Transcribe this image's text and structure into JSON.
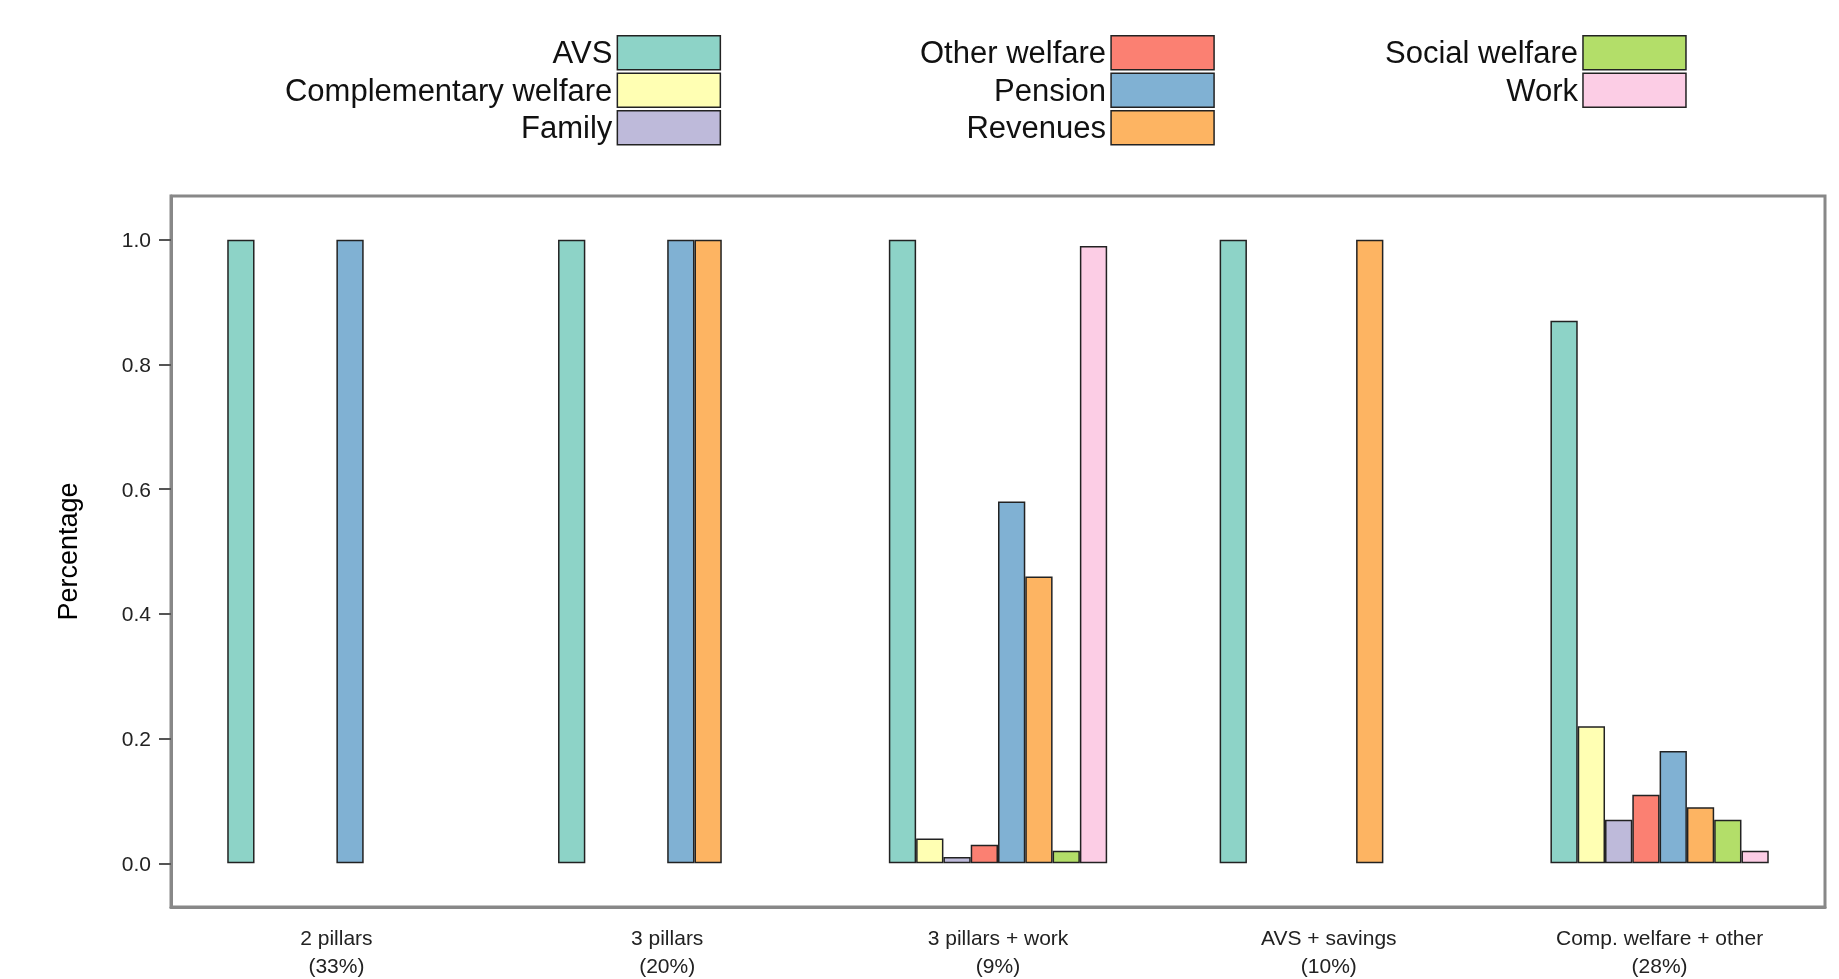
{
  "chart_data": {
    "type": "bar",
    "ylabel": "Percentage",
    "categories": [
      "2 pillars\n(33%)",
      "3 pillars\n(20%)",
      "3 pillars + work\n(9%)",
      "AVS + savings\n(10%)",
      "Comp. welfare + other\n(28%)"
    ],
    "series": [
      {
        "name": "AVS",
        "color": "#8dd3c7",
        "values": [
          1,
          1,
          1,
          1,
          0.87
        ]
      },
      {
        "name": "Complementary welfare",
        "color": "#ffffb3",
        "values": [
          0,
          0,
          0.04,
          0,
          0.22
        ]
      },
      {
        "name": "Family",
        "color": "#bebada",
        "values": [
          0,
          0,
          0.01,
          0,
          0.07
        ]
      },
      {
        "name": "Other welfare",
        "color": "#fb8072",
        "values": [
          0,
          0,
          0.03,
          0,
          0.11
        ]
      },
      {
        "name": "Pension",
        "color": "#80b1d3",
        "values": [
          1,
          1,
          0.58,
          0,
          0.18
        ]
      },
      {
        "name": "Revenues",
        "color": "#fdb462",
        "values": [
          0,
          1,
          0.46,
          1,
          0.09
        ]
      },
      {
        "name": "Social welfare",
        "color": "#b3de69",
        "values": [
          0,
          0,
          0.02,
          0,
          0.07
        ]
      },
      {
        "name": "Work",
        "color": "#fccde5",
        "values": [
          0,
          0,
          0.99,
          0,
          0.02
        ]
      }
    ],
    "ylim": [
      -0.07,
      1.07
    ],
    "yticks": [
      {
        "value": 0,
        "label": "0.0"
      },
      {
        "value": 0.2,
        "label": "0.2"
      },
      {
        "value": 0.4,
        "label": "0.4"
      },
      {
        "value": 0.6,
        "label": "0.6"
      },
      {
        "value": 0.8,
        "label": "0.8"
      },
      {
        "value": 1,
        "label": "1.0"
      }
    ],
    "grid": false,
    "legend": "top"
  }
}
